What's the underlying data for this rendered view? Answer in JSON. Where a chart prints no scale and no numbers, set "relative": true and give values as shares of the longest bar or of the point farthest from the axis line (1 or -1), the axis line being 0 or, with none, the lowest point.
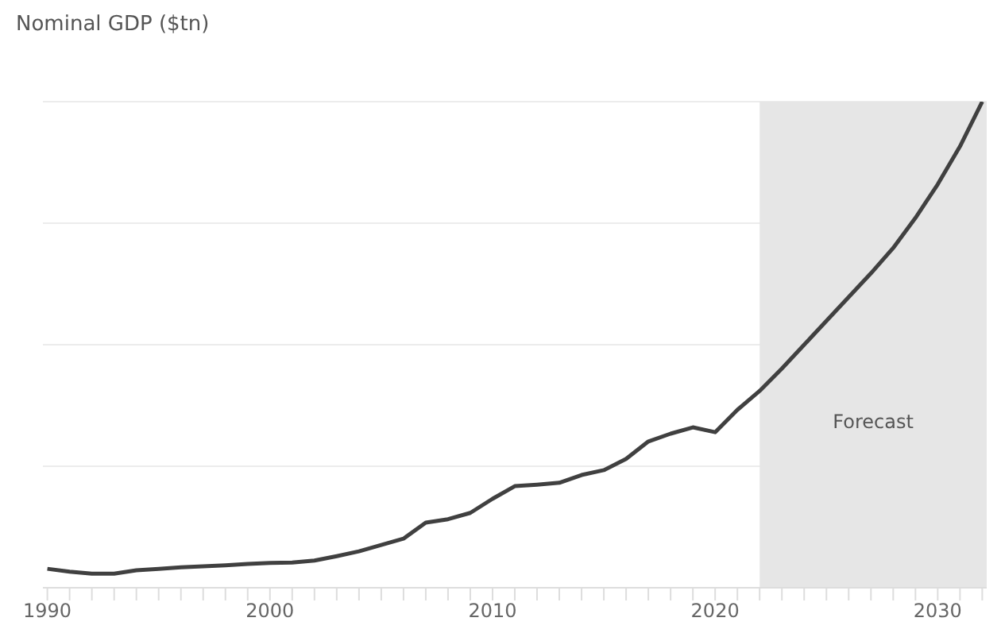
{
  "chart_data": {
    "type": "line",
    "title": "Nominal GDP ($tn)",
    "relative": true,
    "x": [
      1990,
      1991,
      1992,
      1993,
      1994,
      1995,
      1996,
      1997,
      1998,
      1999,
      2000,
      2001,
      2002,
      2003,
      2004,
      2005,
      2006,
      2007,
      2008,
      2009,
      2010,
      2011,
      2012,
      2013,
      2014,
      2015,
      2016,
      2017,
      2018,
      2019,
      2020,
      2021,
      2022,
      2023,
      2024,
      2025,
      2026,
      2027,
      2028,
      2029,
      2030,
      2031,
      2032
    ],
    "series": [
      {
        "color": "#404040",
        "values": [
          0.039,
          0.033,
          0.029,
          0.029,
          0.036,
          0.039,
          0.042,
          0.044,
          0.046,
          0.049,
          0.051,
          0.052,
          0.056,
          0.065,
          0.075,
          0.088,
          0.101,
          0.134,
          0.141,
          0.154,
          0.183,
          0.209,
          0.212,
          0.216,
          0.232,
          0.242,
          0.265,
          0.301,
          0.317,
          0.33,
          0.32,
          0.366,
          0.405,
          0.451,
          0.5,
          0.549,
          0.598,
          0.647,
          0.699,
          0.761,
          0.83,
          0.908,
          1
        ]
      }
    ],
    "xlim": [
      1989.8,
      2032.2
    ],
    "xticks": [
      1990,
      {
        "value": 1991,
        "label": null
      },
      {
        "value": 1992,
        "label": null
      },
      {
        "value": 1993,
        "label": null
      },
      {
        "value": 1994,
        "label": null
      },
      {
        "value": 1995,
        "label": null
      },
      {
        "value": 1996,
        "label": null
      },
      {
        "value": 1997,
        "label": null
      },
      {
        "value": 1998,
        "label": null
      },
      {
        "value": 1999,
        "label": null
      },
      2000,
      {
        "value": 2001,
        "label": null
      },
      {
        "value": 2002,
        "label": null
      },
      {
        "value": 2003,
        "label": null
      },
      {
        "value": 2004,
        "label": null
      },
      {
        "value": 2005,
        "label": null
      },
      {
        "value": 2006,
        "label": null
      },
      {
        "value": 2007,
        "label": null
      },
      {
        "value": 2008,
        "label": null
      },
      {
        "value": 2009,
        "label": null
      },
      2010,
      {
        "value": 2011,
        "label": null
      },
      {
        "value": 2012,
        "label": null
      },
      {
        "value": 2013,
        "label": null
      },
      {
        "value": 2014,
        "label": null
      },
      {
        "value": 2015,
        "label": null
      },
      {
        "value": 2016,
        "label": null
      },
      {
        "value": 2017,
        "label": null
      },
      {
        "value": 2018,
        "label": null
      },
      {
        "value": 2019,
        "label": null
      },
      2020,
      {
        "value": 2021,
        "label": null
      },
      {
        "value": 2022,
        "label": null
      },
      {
        "value": 2023,
        "label": null
      },
      {
        "value": 2024,
        "label": null
      },
      {
        "value": 2025,
        "label": null
      },
      {
        "value": 2026,
        "label": null
      },
      {
        "value": 2027,
        "label": null
      },
      {
        "value": 2028,
        "label": null
      },
      {
        "value": 2029,
        "label": null
      },
      2030,
      {
        "value": 2031,
        "label": null
      },
      {
        "value": 2032,
        "label": null
      }
    ],
    "bands": [
      {
        "axis": "x",
        "from": 2022,
        "to": 2032.2,
        "label": "Forecast",
        "color": "#e6e6e6"
      }
    ],
    "grid": "y",
    "marker": "none",
    "line_style": "solid"
  }
}
